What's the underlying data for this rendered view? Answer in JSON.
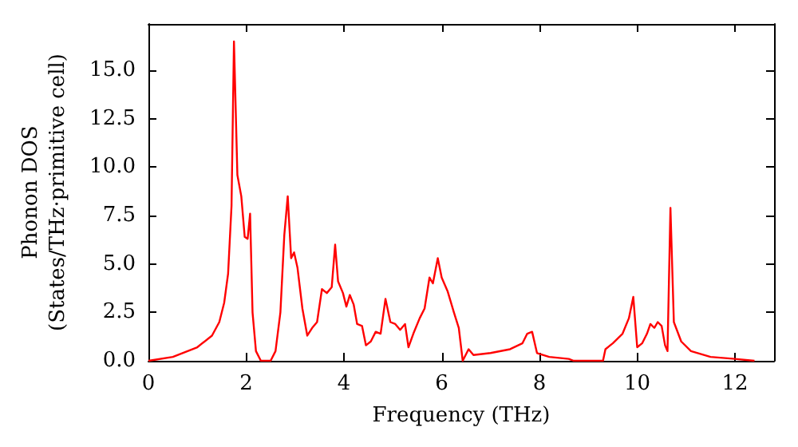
{
  "chart_data": {
    "type": "line",
    "xlabel": "Frequency (THz)",
    "ylabel": "Phonon DOS\n(States/THz·primitive cell)",
    "x": [
      0,
      0.5,
      1.0,
      1.3,
      1.45,
      1.55,
      1.63,
      1.7,
      1.75,
      1.82,
      1.9,
      1.97,
      2.03,
      2.08,
      2.13,
      2.2,
      2.3,
      2.5,
      2.6,
      2.7,
      2.78,
      2.85,
      2.92,
      2.98,
      3.05,
      3.15,
      3.25,
      3.35,
      3.45,
      3.55,
      3.65,
      3.75,
      3.82,
      3.88,
      3.98,
      4.05,
      4.12,
      4.2,
      4.27,
      4.37,
      4.45,
      4.55,
      4.65,
      4.75,
      4.85,
      4.95,
      5.05,
      5.15,
      5.25,
      5.32,
      5.42,
      5.55,
      5.65,
      5.75,
      5.82,
      5.92,
      6.0,
      6.12,
      6.25,
      6.35,
      6.43,
      6.55,
      6.65,
      7.0,
      7.4,
      7.65,
      7.75,
      7.85,
      7.95,
      8.2,
      8.6,
      8.7,
      9.3,
      9.35,
      9.5,
      9.7,
      9.83,
      9.92,
      10.0,
      10.1,
      10.2,
      10.27,
      10.35,
      10.42,
      10.5,
      10.57,
      10.62,
      10.68,
      10.75,
      10.9,
      11.1,
      11.5,
      12.0,
      12.4
    ],
    "series": [
      {
        "color": "#ff0000",
        "values": [
          0,
          0.2,
          0.7,
          1.3,
          2.0,
          3.0,
          4.5,
          8,
          16.5,
          9.6,
          8.5,
          6.4,
          6.3,
          7.6,
          2.5,
          0.5,
          0,
          0,
          0.5,
          2.5,
          6.5,
          8.5,
          5.3,
          5.6,
          4.8,
          2.7,
          1.3,
          1.7,
          2.0,
          3.7,
          3.5,
          3.8,
          6.0,
          4.1,
          3.5,
          2.8,
          3.4,
          2.9,
          1.9,
          1.8,
          0.8,
          1.0,
          1.5,
          1.4,
          3.2,
          2.0,
          1.9,
          1.6,
          1.9,
          0.7,
          1.4,
          2.2,
          2.7,
          4.3,
          4.0,
          5.3,
          4.3,
          3.6,
          2.5,
          1.7,
          0,
          0.6,
          0.3,
          0.4,
          0.6,
          0.9,
          1.4,
          1.5,
          0.4,
          0.2,
          0.1,
          0,
          0,
          0.6,
          0.9,
          1.4,
          2.2,
          3.3,
          0.7,
          0.9,
          1.4,
          1.9,
          1.7,
          2.0,
          1.8,
          0.8,
          0.5,
          7.9,
          2.0,
          1.0,
          0.5,
          0.2,
          0.1,
          0
        ]
      }
    ],
    "xlim": [
      0,
      12.8
    ],
    "xticks": [
      0,
      2,
      4,
      6,
      8,
      10,
      12
    ],
    "ylim": [
      0,
      17.4
    ],
    "yticks": [
      {
        "value": 0,
        "label": "0.0"
      },
      {
        "value": 2.5,
        "label": "2.5"
      },
      {
        "value": 5,
        "label": "5.0"
      },
      {
        "value": 7.5,
        "label": "7.5"
      },
      {
        "value": 10,
        "label": "10.0"
      },
      {
        "value": 12.5,
        "label": "12.5"
      },
      {
        "value": 15,
        "label": "15.0"
      }
    ],
    "grid": false,
    "marker": "none",
    "line_style": "solid"
  }
}
